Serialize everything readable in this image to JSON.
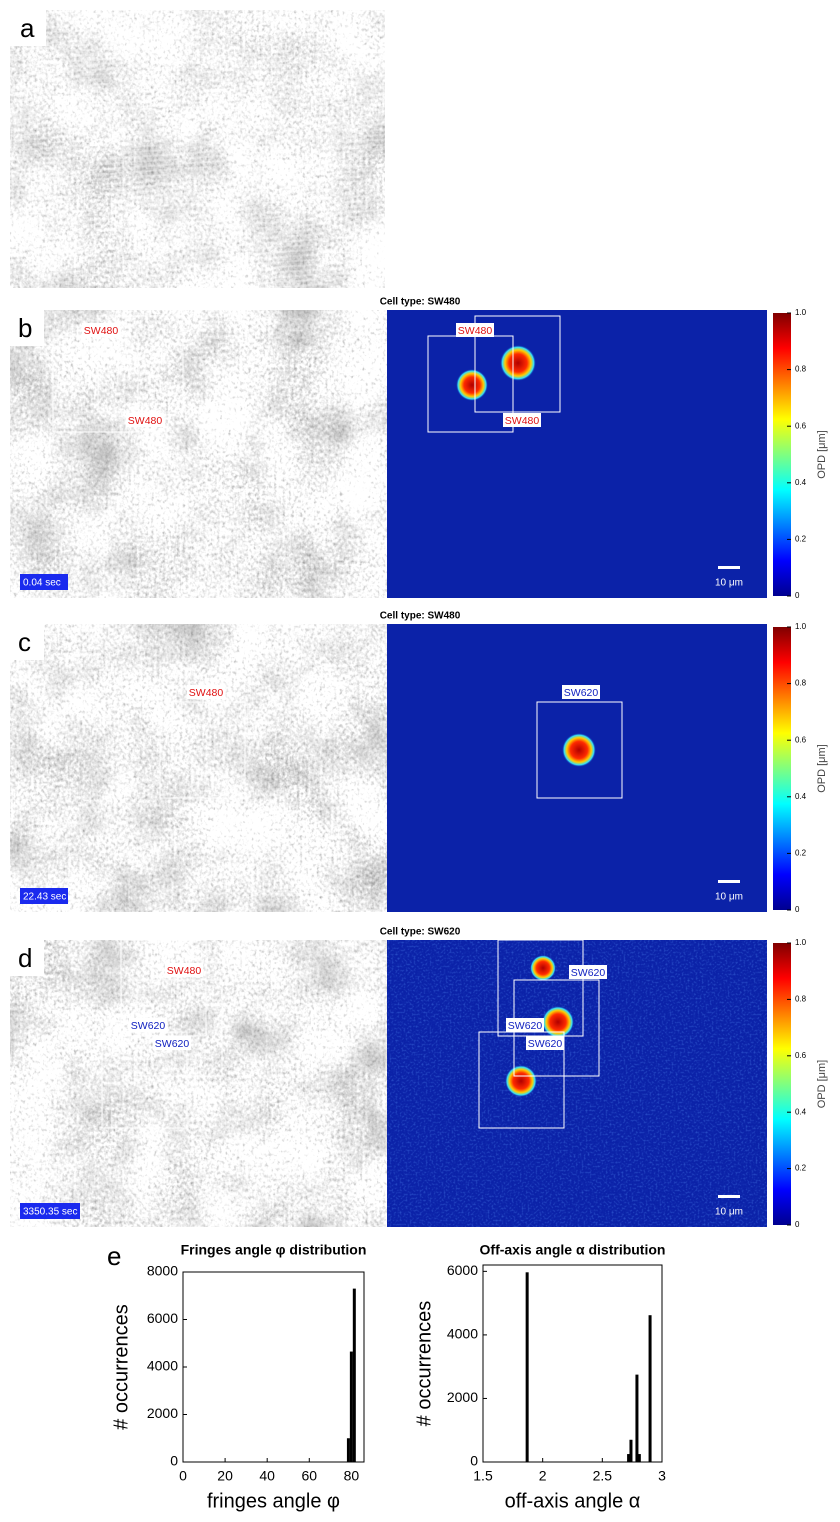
{
  "panels": [
    {
      "label": "a"
    },
    {
      "label": "b",
      "title": "Cell type: SW480",
      "time": "0.04 sec",
      "scale_bar": "10 μm",
      "left_tags": [
        {
          "text": "SW480",
          "color": "#e01010"
        },
        {
          "text": "SW480",
          "color": "#e01010"
        }
      ],
      "right_tags": [
        {
          "text": "SW480",
          "color": "#e01010"
        },
        {
          "text": "SW480",
          "color": "#e01010"
        }
      ]
    },
    {
      "label": "c",
      "title": "Cell type: SW480",
      "time": "22.43 sec",
      "scale_bar": "10 μm",
      "left_tags": [
        {
          "text": "SW480",
          "color": "#e01010"
        }
      ],
      "right_tags": [
        {
          "text": "SW620",
          "color": "#1020c0"
        }
      ]
    },
    {
      "label": "d",
      "title": "Cell type: SW620",
      "time": "3350.35 sec",
      "scale_bar": "10 μm",
      "left_tags": [
        {
          "text": "SW480",
          "color": "#e01010"
        },
        {
          "text": "SW620",
          "color": "#1020c0"
        },
        {
          "text": "SW620",
          "color": "#1020c0"
        }
      ],
      "right_tags": [
        {
          "text": "SW620",
          "color": "#1020c0"
        },
        {
          "text": "SW620",
          "color": "#1020c0"
        },
        {
          "text": "SW620",
          "color": "#1020c0"
        }
      ]
    }
  ],
  "colorbar": {
    "label": "OPD [μm]",
    "ticks": [
      0,
      0.2,
      0.4,
      0.6,
      0.8,
      {
        "value": 1,
        "label": "1.0"
      }
    ]
  },
  "panel_e_label": "e",
  "chart_data": [
    {
      "type": "bar",
      "title": "Fringes angle φ distribution",
      "x_label": "fringes angle φ",
      "y_label": "# occurrences",
      "x": [
        78.6,
        80,
        81.4
      ],
      "values": [
        1000,
        4650,
        7300
      ],
      "color": "#000000",
      "xlim": [
        0,
        86
      ],
      "ylim": [
        0,
        8000
      ],
      "xticks": [
        0,
        20,
        40,
        60,
        80
      ],
      "yticks": [
        0,
        2000,
        4000,
        6000,
        8000
      ]
    },
    {
      "type": "bar",
      "title": "Off-axis angle α distribution",
      "x_label": "off-axis angle α",
      "y_label": "# occurrences",
      "x": [
        1.87,
        2.72,
        2.74,
        2.79,
        2.81,
        2.9
      ],
      "values": [
        5970,
        250,
        700,
        2750,
        250,
        4620
      ],
      "color": "#000000",
      "xlim": [
        1.5,
        3
      ],
      "ylim": [
        0,
        6200
      ],
      "xticks": [
        1.5,
        2,
        2.5,
        3
      ],
      "yticks": [
        0,
        2000,
        4000,
        6000
      ]
    }
  ]
}
